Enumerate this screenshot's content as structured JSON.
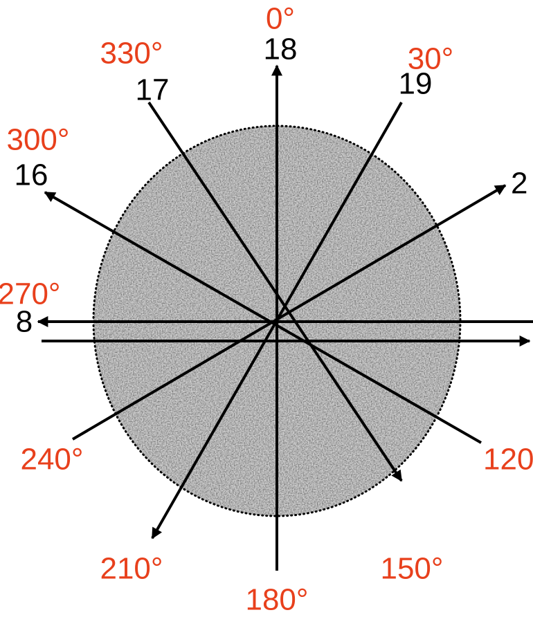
{
  "angle_labels": [
    "0°",
    "330°",
    "30°",
    "300°",
    "270°",
    "240°",
    "120",
    "210°",
    "150°",
    "180°"
  ],
  "number_labels": [
    "18",
    "17",
    "19",
    "16",
    "2",
    "8"
  ]
}
